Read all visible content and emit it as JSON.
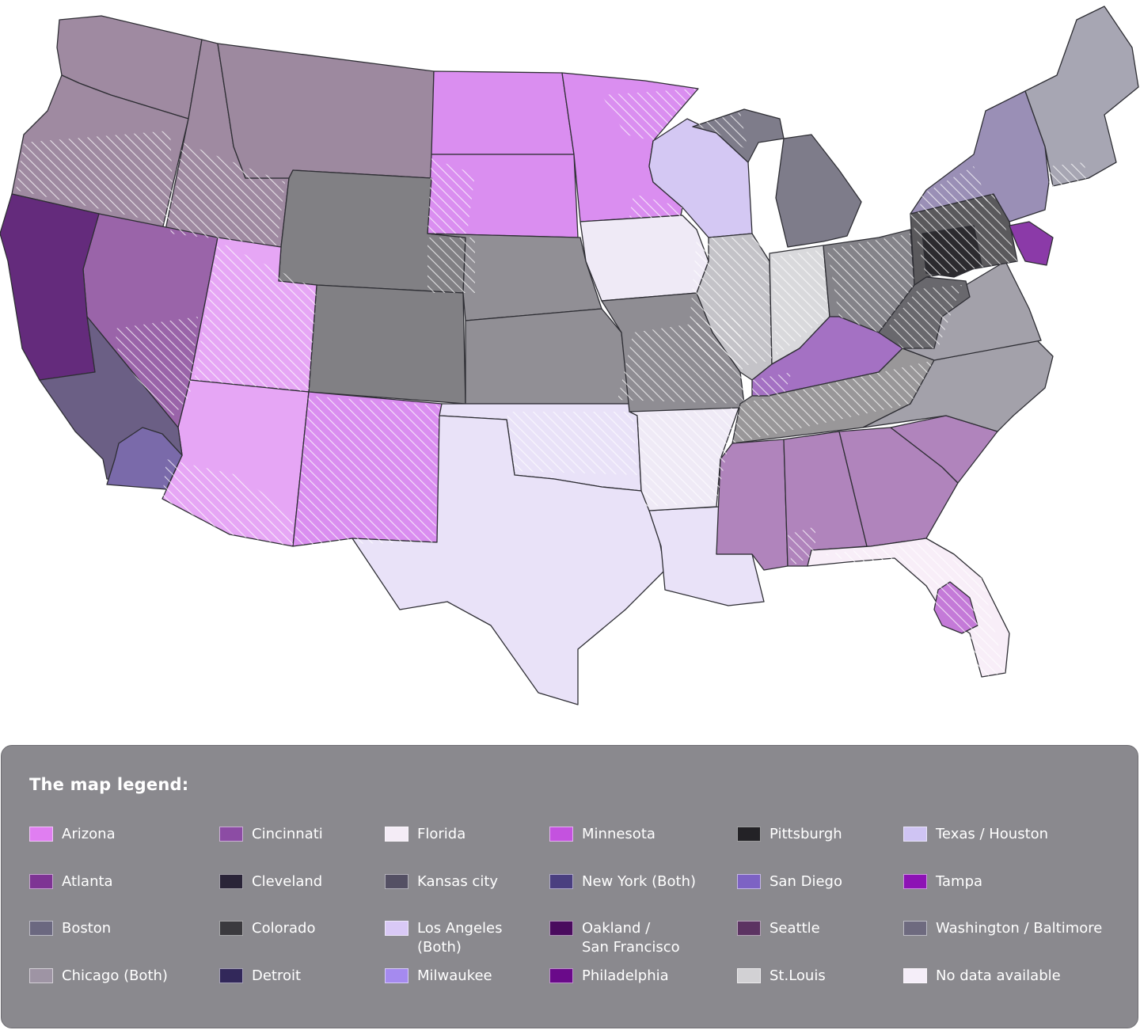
{
  "colors": {
    "arizona": "#e6a6f5",
    "minnesota": "#da8ef0",
    "cincinnati_state": "#9c65a8",
    "nevada": "#9a64a9",
    "california": "#642b7c",
    "southern_ca": "#6b5f85",
    "san_diego": "#7a6aaa",
    "northwest": "#9f8aa1",
    "montana": "#9d899f",
    "mountain_gray": "#818084",
    "plains_gray": "#918f95",
    "light_lavender": "#e9e2f8",
    "arkansas": "#efeaf6",
    "missouri": "#8f8d93",
    "illinois": "#c4c3c8",
    "indiana": "#d9d9dc",
    "wisconsin": "#d4c8f3",
    "michigan": "#7e7c8a",
    "ohio": "#848389",
    "kentucky": "#a471c3",
    "tennessee": "#999799",
    "southeast": "#b084bc",
    "florida": "#f8eef8",
    "florida_tampa": "#c47ad8",
    "carolina": "#a3a1aa",
    "new_york": "#9a8fb6",
    "new_england": "#a7a6b3",
    "pennsylvania": "#5a595c",
    "pittsburgh": "#2c2b2f",
    "philadelphia": "#8b3aa8",
    "west_virginia": "#69686d"
  },
  "legend": {
    "title": "The map legend:",
    "items": [
      {
        "label": "Arizona",
        "color": "#e07ef1"
      },
      {
        "label": "Atlanta",
        "color": "#7e3494"
      },
      {
        "label": "Boston",
        "color": "#6b6880"
      },
      {
        "label": "Chicago (Both)",
        "color": "#9e94a4"
      },
      {
        "label": "Cincinnati",
        "color": "#8c4ca4"
      },
      {
        "label": "Cleveland",
        "color": "#2a2438"
      },
      {
        "label": "Colorado",
        "color": "#3b3a3e"
      },
      {
        "label": "Detroit",
        "color": "#32285a"
      },
      {
        "label": "Florida",
        "color": "#f4ecf6"
      },
      {
        "label": "Kansas city",
        "color": "#545064"
      },
      {
        "label": "Los Angeles\n(Both)",
        "color": "#d9c9f6"
      },
      {
        "label": "Milwaukee",
        "color": "#a58aef"
      },
      {
        "label": "Minnesota",
        "color": "#c452df"
      },
      {
        "label": "New York (Both)",
        "color": "#4a3f80"
      },
      {
        "label": "Oakland /\nSan Francisco",
        "color": "#4a0b5e"
      },
      {
        "label": "Philadelphia",
        "color": "#6a0a8a"
      },
      {
        "label": "Pittsburgh",
        "color": "#232226"
      },
      {
        "label": "San Diego",
        "color": "#7d62c4"
      },
      {
        "label": "Seattle",
        "color": "#5c3362"
      },
      {
        "label": "St.Louis",
        "color": "#d2d1d4"
      },
      {
        "label": "Texas / Houston",
        "color": "#cfc4f3"
      },
      {
        "label": "Tampa",
        "color": "#8d12b5"
      },
      {
        "label": "Washington / Baltimore",
        "color": "#6e6a7f"
      },
      {
        "label": "No data available",
        "color": "#f5eef9"
      }
    ]
  }
}
